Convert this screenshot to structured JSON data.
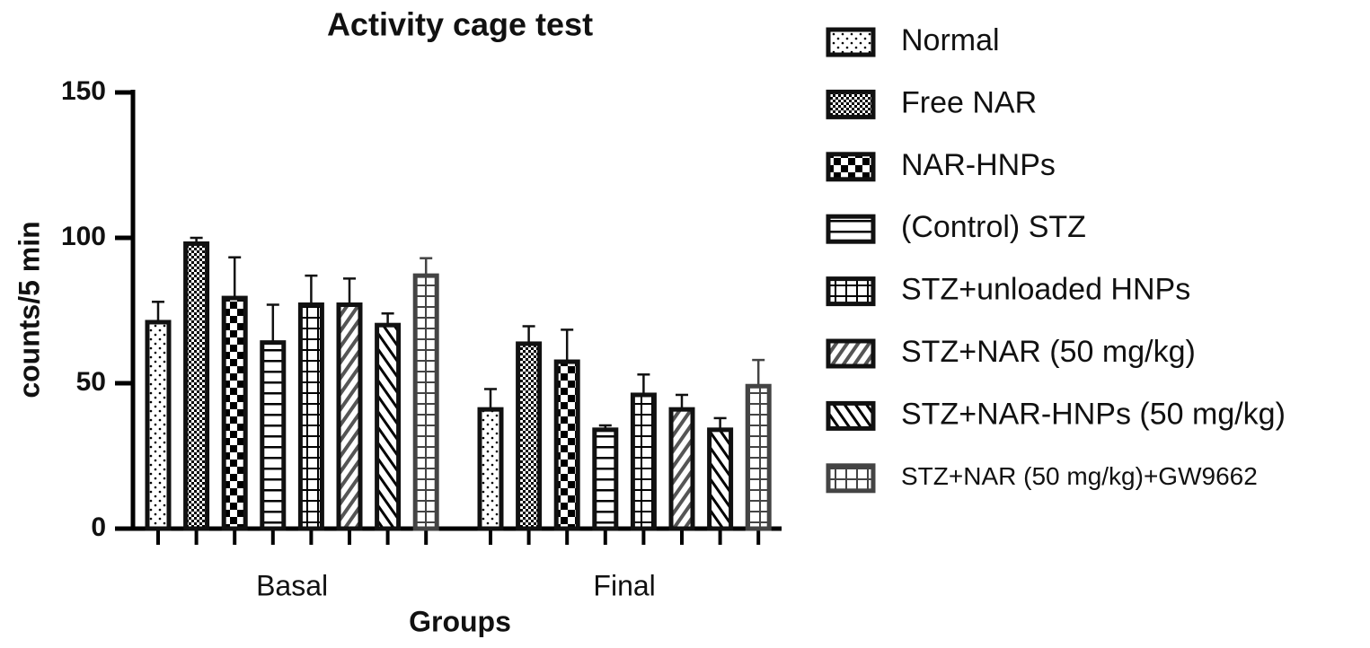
{
  "chart_data": {
    "type": "bar",
    "title": "Activity cage test",
    "x_label": "Groups",
    "y_label": "counts/5 min",
    "categories": [
      "Basal",
      "Final"
    ],
    "ylim": [
      0,
      150
    ],
    "yticks": [
      0,
      50,
      100,
      150
    ],
    "series": [
      {
        "name": "Normal",
        "color": "#111111",
        "pattern": "dots",
        "values": [
          71,
          41
        ],
        "errors": [
          7,
          7
        ]
      },
      {
        "name": "Free NAR",
        "color": "#111111",
        "pattern": "fine-check",
        "values": [
          98,
          63.6
        ],
        "errors": [
          2,
          6
        ]
      },
      {
        "name": "NAR-HNPs",
        "color": "#111111",
        "pattern": "check",
        "values": [
          79.3,
          57.4
        ],
        "errors": [
          14,
          11
        ]
      },
      {
        "name": "(Control) STZ",
        "color": "#111111",
        "pattern": "hlines",
        "values": [
          64,
          34
        ],
        "errors": [
          13,
          1.5
        ]
      },
      {
        "name": "STZ+unloaded HNPs",
        "color": "#111111",
        "pattern": "grid",
        "values": [
          77,
          46
        ],
        "errors": [
          10,
          7
        ]
      },
      {
        "name": "STZ+NAR (50 mg/kg)",
        "color": "#111111",
        "pattern": "diag",
        "values": [
          77,
          41
        ],
        "errors": [
          9,
          5
        ]
      },
      {
        "name": "STZ+NAR-HNPs (50 mg/kg)",
        "color": "#111111",
        "pattern": "antidiag",
        "values": [
          70,
          34
        ],
        "errors": [
          4,
          4
        ]
      },
      {
        "name": "STZ+NAR (50 mg/kg)+GW9662",
        "color": "#444444",
        "pattern": "gray-grid",
        "values": [
          87,
          49
        ],
        "errors": [
          6,
          9
        ]
      }
    ]
  }
}
